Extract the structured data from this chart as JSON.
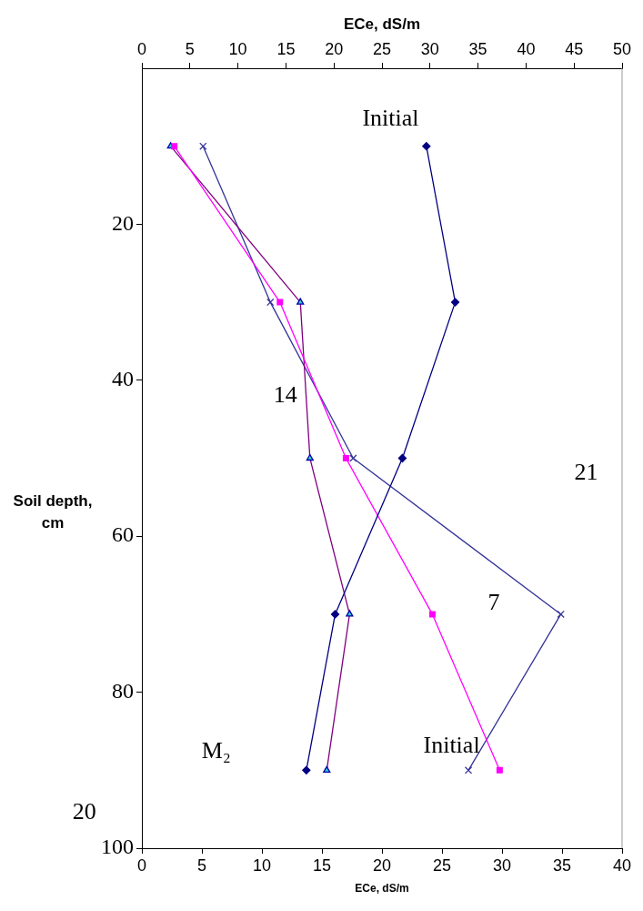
{
  "chart_data": {
    "type": "line",
    "xlabel": "ECe, dS/m",
    "x2label": "ECe, dS/m",
    "ylabel": "Soil depth, cm",
    "xlim": [
      0,
      40
    ],
    "xticks": [
      0,
      5,
      10,
      15,
      20,
      25,
      30,
      35,
      40
    ],
    "x2lim": [
      0,
      50
    ],
    "x2ticks": [
      0,
      5,
      10,
      15,
      20,
      25,
      30,
      35,
      40,
      45,
      50
    ],
    "ylim": [
      100,
      0
    ],
    "yticks": [
      20,
      40,
      60,
      80,
      100
    ],
    "grid": false,
    "legend": false,
    "series": [
      {
        "color": "#000080",
        "marker": "diamond",
        "x": [
          23.7,
          26.1,
          21.7,
          16.1,
          13.7
        ],
        "values": [
          10,
          30,
          50,
          70,
          90
        ]
      },
      {
        "color": "#ff00ff",
        "marker": "square",
        "x": [
          2.7,
          11.5,
          17.0,
          24.2,
          29.8
        ],
        "values": [
          10,
          30,
          50,
          70,
          90
        ]
      },
      {
        "color": "#800080",
        "marker": "triangle",
        "x": [
          2.4,
          13.2,
          14.0,
          17.3,
          15.4
        ],
        "values": [
          10,
          30,
          50,
          70,
          90
        ]
      },
      {
        "color": "#333399",
        "marker": "cross",
        "x": [
          5.1,
          10.7,
          17.6,
          34.9,
          27.2
        ],
        "values": [
          10,
          30,
          50,
          70,
          90
        ]
      }
    ],
    "annotations": [
      "Initial",
      "14",
      "21",
      "7",
      "M₂",
      "Initial",
      "20"
    ]
  }
}
